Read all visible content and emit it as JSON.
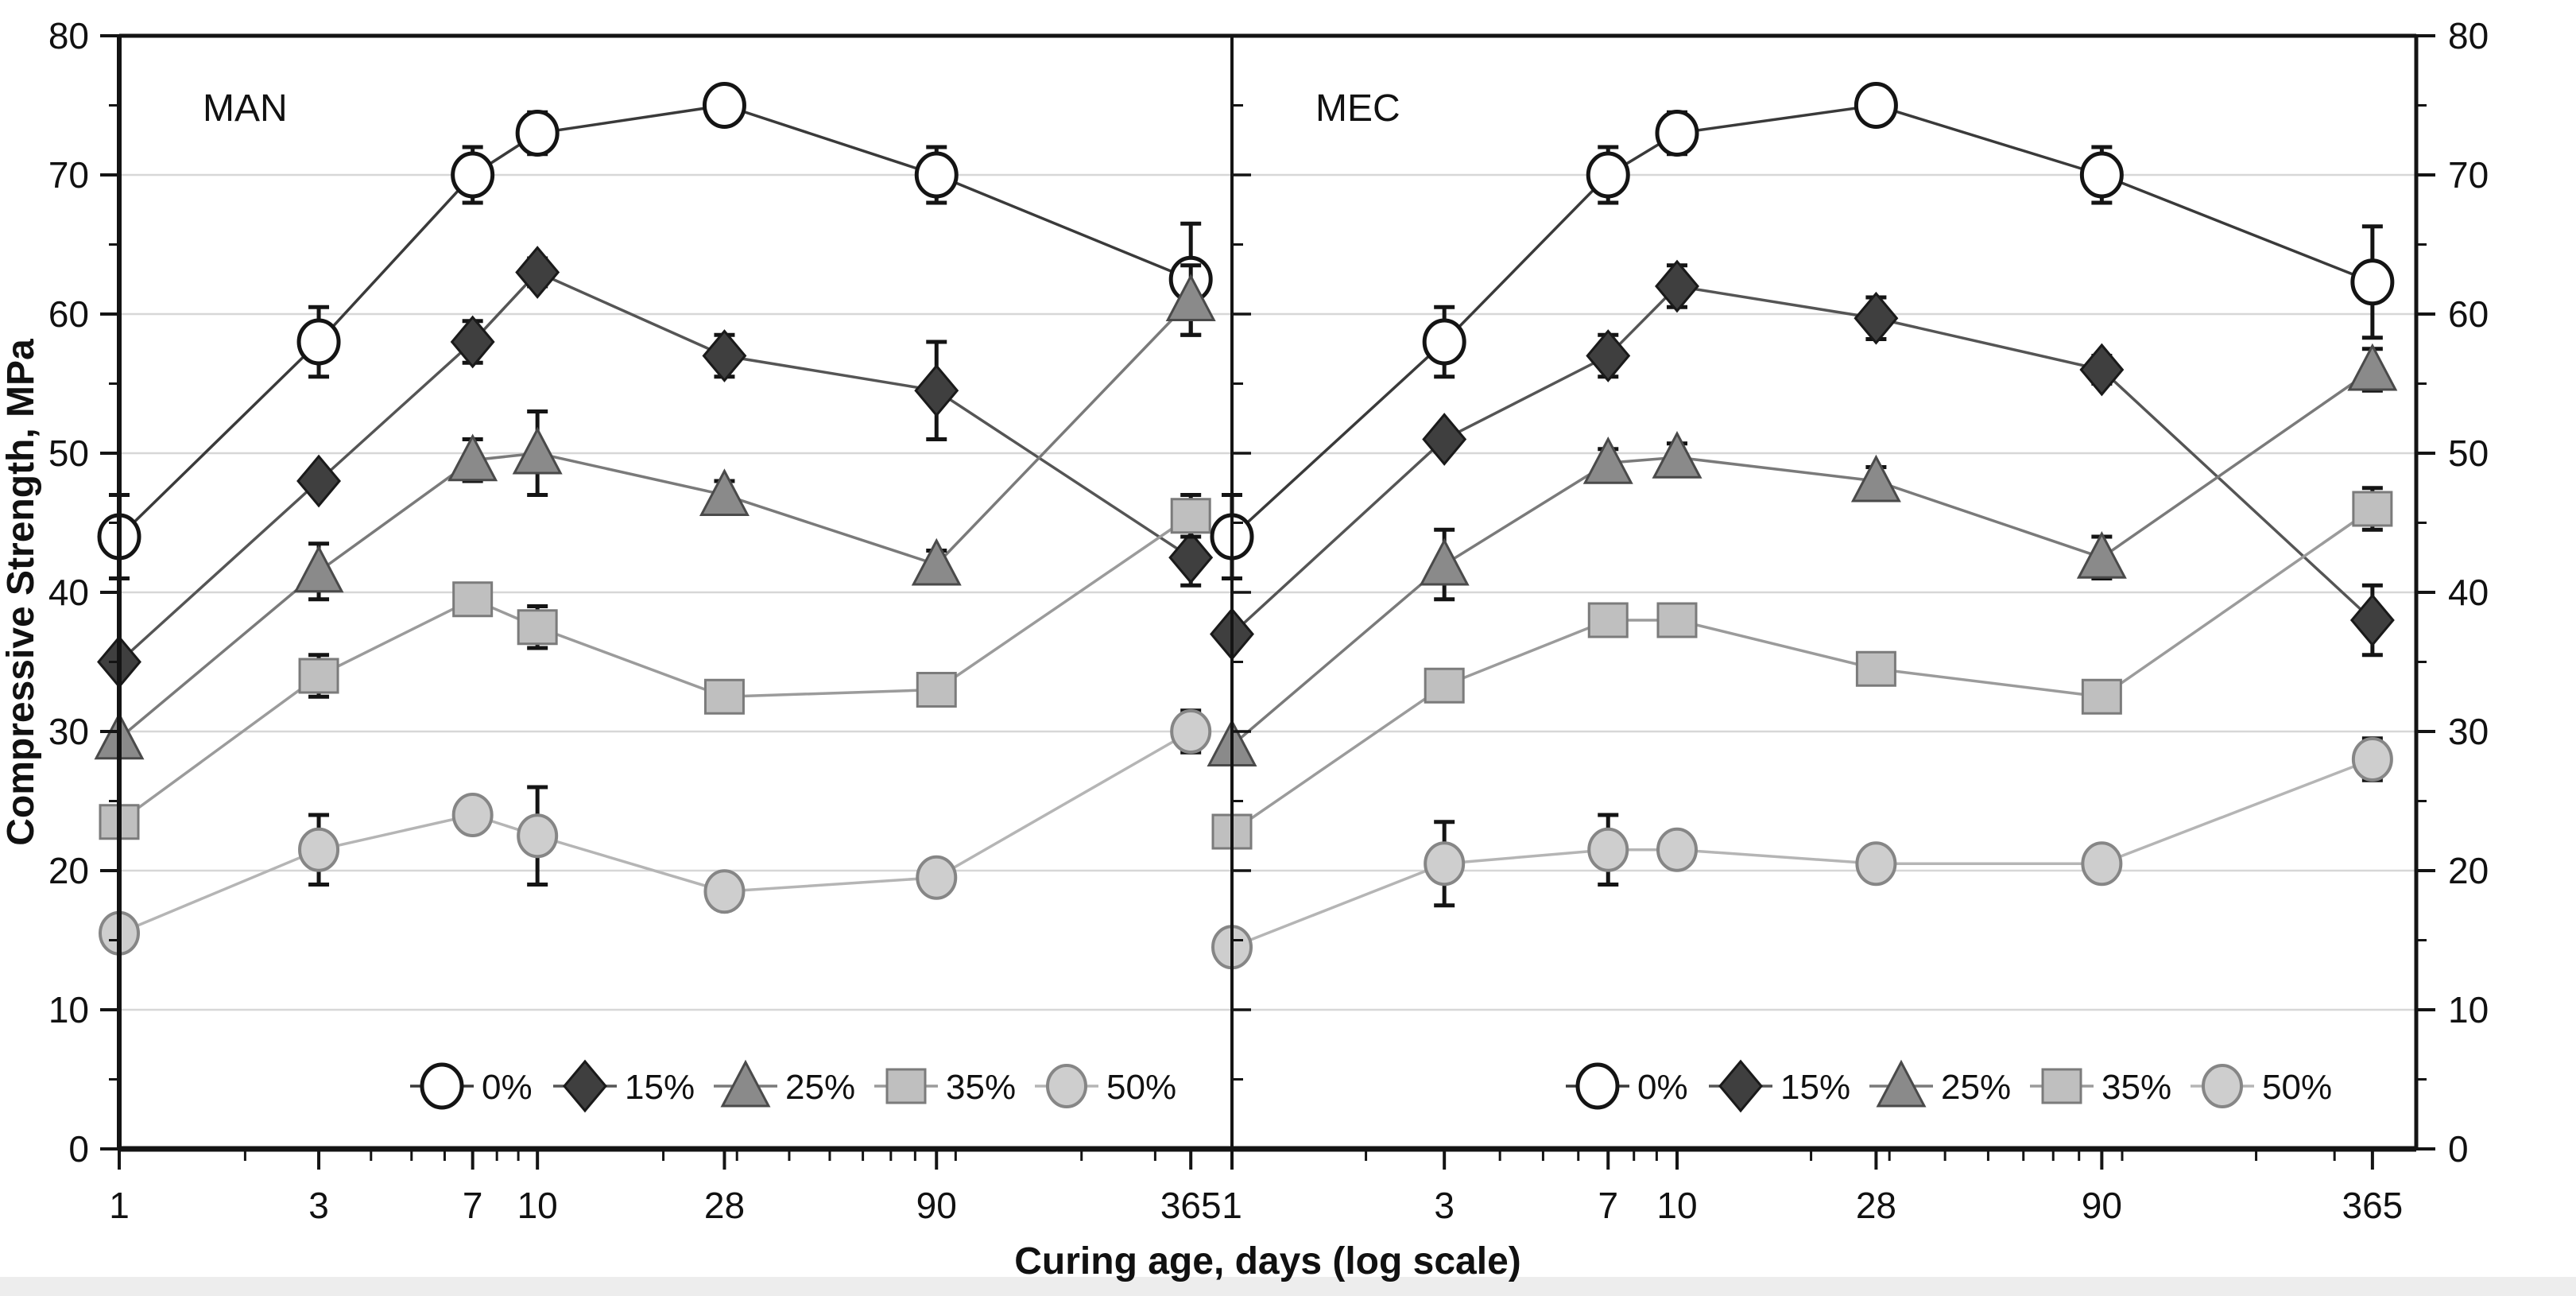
{
  "figure": {
    "x_axis_title": "Curing age, days (log scale)",
    "y_axis_title": "Compressive Strength, MPa",
    "panel_labels": [
      "MAN",
      "MEC"
    ]
  },
  "chart_data": {
    "type": "line",
    "title": "",
    "xlabel": "Curing age, days (log scale)",
    "ylabel": "Compressive Strength, MPa",
    "x_scale": "log",
    "x": [
      1,
      3,
      7,
      10,
      28,
      90,
      365
    ],
    "x_tick_labels": [
      "1",
      "3",
      "7",
      "10",
      "28",
      "90",
      "365"
    ],
    "x_minor_ticks": [
      2,
      4,
      5,
      6,
      8,
      9,
      20,
      30,
      40,
      50,
      60,
      70,
      80,
      100,
      200,
      300
    ],
    "ylim": [
      0,
      80
    ],
    "y_major_ticks": [
      0,
      10,
      20,
      30,
      40,
      50,
      60,
      70,
      80
    ],
    "y_tick_labels": [
      "0",
      "10",
      "20",
      "30",
      "40",
      "50",
      "60",
      "70",
      "80"
    ],
    "y_minor_ticks": [
      5,
      15,
      25,
      35,
      45,
      55,
      65,
      75
    ],
    "grid_values": [
      10,
      20,
      30,
      40,
      50,
      60,
      70
    ],
    "grid": "horizontal",
    "legend_position": "inside-bottom",
    "legend_labels": [
      "0%",
      "15%",
      "25%",
      "35%",
      "50%"
    ],
    "panels": [
      {
        "label": "MAN",
        "series": [
          {
            "name": "0%",
            "marker": "open-circle",
            "values": [
              44,
              58,
              70,
              73,
              75,
              70,
              62.5
            ],
            "errors": [
              3,
              2.5,
              2,
              1.5,
              1,
              2,
              4
            ]
          },
          {
            "name": "15%",
            "marker": "filled-diamond",
            "values": [
              35,
              48,
              58,
              63,
              57,
              54.5,
              42.5
            ],
            "errors": [
              0,
              0,
              1.5,
              1,
              1.5,
              3.5,
              2
            ]
          },
          {
            "name": "25%",
            "marker": "filled-triangle",
            "values": [
              29.5,
              41.5,
              49.5,
              50,
              47,
              42,
              61
            ],
            "errors": [
              0,
              2,
              1.5,
              3,
              1,
              1,
              2.5
            ]
          },
          {
            "name": "35%",
            "marker": "filled-square",
            "values": [
              23.5,
              34,
              39.5,
              37.5,
              32.5,
              33,
              45.5
            ],
            "errors": [
              0,
              1.5,
              0,
              1.5,
              0,
              0,
              1.5
            ]
          },
          {
            "name": "50%",
            "marker": "filled-circle",
            "values": [
              15.5,
              21.5,
              24,
              22.5,
              18.5,
              19.5,
              30
            ],
            "errors": [
              0,
              2.5,
              1,
              3.5,
              1,
              0,
              1.5
            ]
          }
        ]
      },
      {
        "label": "MEC",
        "series": [
          {
            "name": "0%",
            "marker": "open-circle",
            "values": [
              44,
              58,
              70,
              73,
              75,
              70,
              62.3
            ],
            "errors": [
              3,
              2.5,
              2,
              1.5,
              1,
              2,
              4
            ]
          },
          {
            "name": "15%",
            "marker": "filled-diamond",
            "values": [
              37,
              51,
              57,
              62,
              59.7,
              56,
              38
            ],
            "errors": [
              0,
              0,
              1.5,
              1.5,
              1.5,
              1,
              2.5
            ]
          },
          {
            "name": "25%",
            "marker": "filled-triangle",
            "values": [
              29,
              42,
              49.3,
              49.7,
              48,
              42.5,
              56
            ],
            "errors": [
              0,
              2.5,
              1,
              1,
              1,
              1.5,
              1.5
            ]
          },
          {
            "name": "35%",
            "marker": "filled-square",
            "values": [
              22.8,
              33.3,
              38,
              38,
              34.5,
              32.5,
              46
            ],
            "errors": [
              0,
              0,
              0,
              0,
              0,
              1,
              1.5
            ]
          },
          {
            "name": "50%",
            "marker": "filled-circle",
            "values": [
              14.5,
              20.5,
              21.5,
              21.5,
              20.5,
              20.5,
              28
            ],
            "errors": [
              0,
              3,
              2.5,
              0,
              0,
              0,
              1.5
            ]
          }
        ]
      }
    ]
  },
  "colors": {
    "background": "#ffffff",
    "axis": "#141414",
    "gridline": "#d7d7d7",
    "error_bar": "#141414",
    "bottom_band": "#ededed",
    "series": [
      {
        "name": "0%",
        "marker": "open-circle",
        "line": "#3a3a3a",
        "marker_fill": "#ffffff",
        "marker_stroke": "#141414"
      },
      {
        "name": "15%",
        "marker": "filled-diamond",
        "line": "#555555",
        "marker_fill": "#3f3f3f",
        "marker_stroke": "#1a1a1a"
      },
      {
        "name": "25%",
        "marker": "filled-triangle",
        "line": "#7a7a7a",
        "marker_fill": "#8a8a8a",
        "marker_stroke": "#4a4a4a"
      },
      {
        "name": "35%",
        "marker": "filled-square",
        "line": "#9b9b9b",
        "marker_fill": "#bfbfbf",
        "marker_stroke": "#7b7b7b"
      },
      {
        "name": "50%",
        "marker": "filled-circle",
        "line": "#b5b5b5",
        "marker_fill": "#cecece",
        "marker_stroke": "#868686"
      }
    ]
  }
}
